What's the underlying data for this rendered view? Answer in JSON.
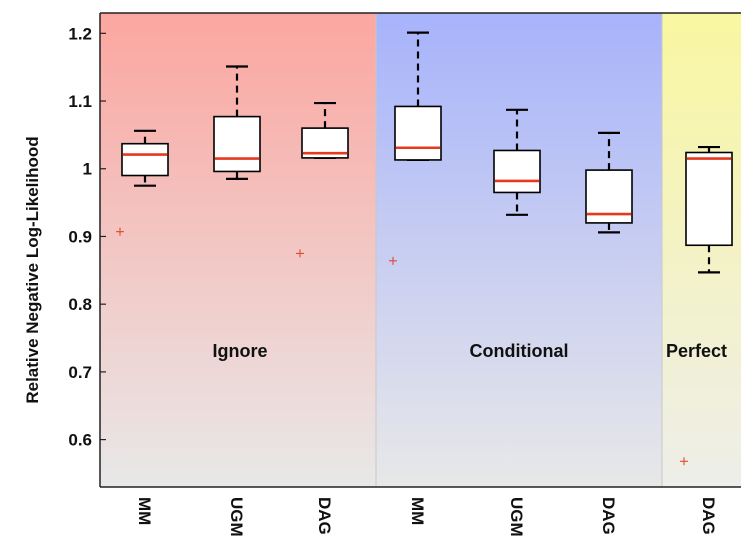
{
  "chart_data": {
    "type": "box",
    "ylabel": "Relative Negative Log-Likelihood",
    "ylim": [
      0.53,
      1.23
    ],
    "yticks": [
      0.6,
      0.7,
      0.8,
      0.9,
      1,
      1.1,
      1.2
    ],
    "ytick_labels": [
      "0.6",
      "0.7",
      "0.8",
      "0.9",
      "1",
      "1.1",
      "1.2"
    ],
    "grid": false,
    "legend": "none",
    "groups": [
      {
        "label": "Ignore",
        "color_top": "#fca6a0",
        "color_bottom": "#e8e8e8"
      },
      {
        "label": "Conditional",
        "color_top": "#a7b3fb",
        "color_bottom": "#e8e8e8"
      },
      {
        "label": "Perfect",
        "color_top": "#f9f7a0",
        "color_bottom": "#eeeeea"
      }
    ],
    "boxes": [
      {
        "group": 0,
        "category": "MM",
        "whisker_low": 0.975,
        "q1": 0.99,
        "median": 1.021,
        "q3": 1.037,
        "whisker_high": 1.056,
        "outliers": [
          0.907
        ]
      },
      {
        "group": 0,
        "category": "UGM",
        "whisker_low": 0.985,
        "q1": 0.996,
        "median": 1.015,
        "q3": 1.077,
        "whisker_high": 1.151,
        "outliers": []
      },
      {
        "group": 0,
        "category": "DAG",
        "whisker_low": 1.016,
        "q1": 1.016,
        "median": 1.023,
        "q3": 1.06,
        "whisker_high": 1.097,
        "outliers": [
          0.875
        ]
      },
      {
        "group": 1,
        "category": "MM",
        "whisker_low": 1.013,
        "q1": 1.013,
        "median": 1.031,
        "q3": 1.092,
        "whisker_high": 1.201,
        "outliers": [
          0.864
        ]
      },
      {
        "group": 1,
        "category": "UGM",
        "whisker_low": 0.932,
        "q1": 0.965,
        "median": 0.982,
        "q3": 1.027,
        "whisker_high": 1.087,
        "outliers": []
      },
      {
        "group": 1,
        "category": "DAG",
        "whisker_low": 0.906,
        "q1": 0.92,
        "median": 0.933,
        "q3": 0.998,
        "whisker_high": 1.053,
        "outliers": []
      },
      {
        "group": 2,
        "category": "DAG",
        "whisker_low": 0.847,
        "q1": 0.887,
        "median": 1.015,
        "q3": 1.024,
        "whisker_high": 1.032,
        "outliers": [
          0.568
        ]
      }
    ]
  }
}
